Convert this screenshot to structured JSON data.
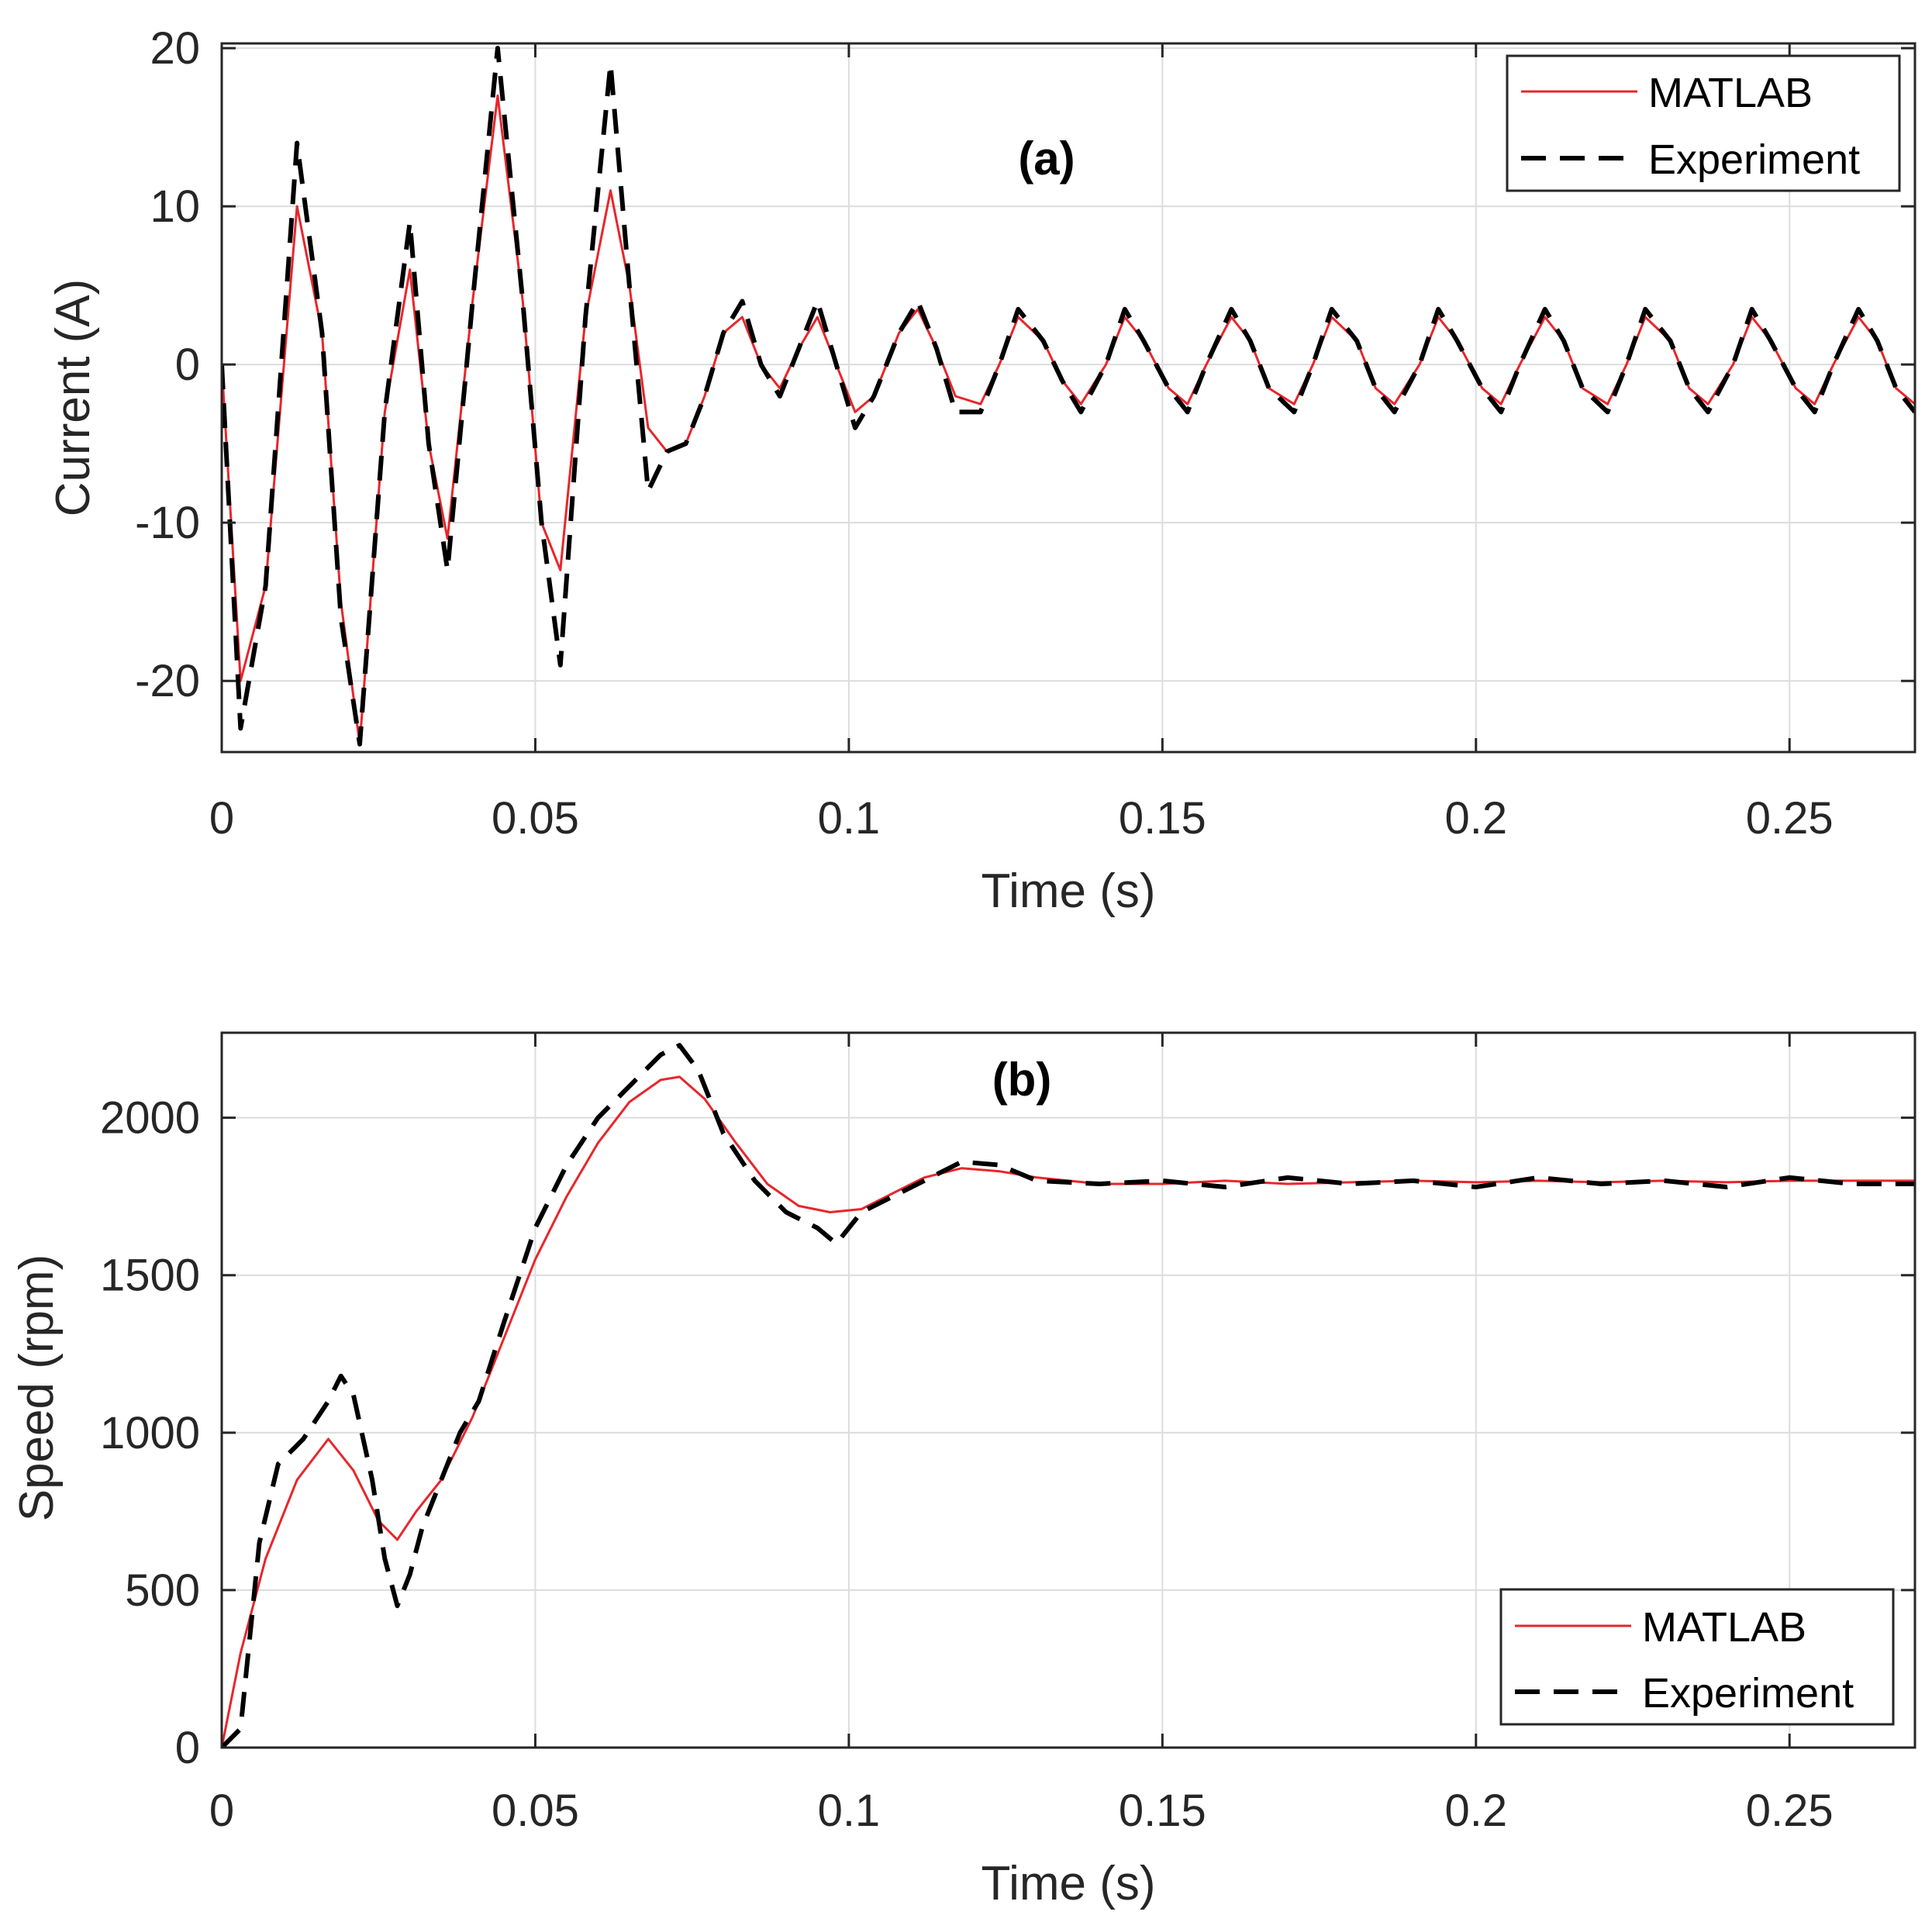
{
  "chart_data": [
    {
      "type": "line",
      "id": "a",
      "title": "(a)",
      "xlabel": "Time (s)",
      "ylabel": "Current (A)",
      "xlim": [
        0,
        0.27
      ],
      "ylim": [
        -24.5,
        20.3
      ],
      "xticks": [
        0,
        0.05,
        0.1,
        0.15,
        0.2,
        0.25
      ],
      "xtick_labels": [
        "0",
        "0.05",
        "0.1",
        "0.15",
        "0.2",
        "0.25"
      ],
      "yticks": [
        -20,
        -10,
        0,
        10,
        20
      ],
      "ytick_labels": [
        "-20",
        "-10",
        "0",
        "10",
        "20"
      ],
      "grid": true,
      "legend_position": "top-right",
      "series": [
        {
          "name": "MATLAB",
          "color": "#e8262b",
          "style": "solid",
          "x": [
            0,
            0.003,
            0.007,
            0.012,
            0.016,
            0.019,
            0.022,
            0.026,
            0.03,
            0.033,
            0.036,
            0.04,
            0.044,
            0.048,
            0.051,
            0.054,
            0.058,
            0.062,
            0.065,
            0.068,
            0.071,
            0.074,
            0.077,
            0.08,
            0.083,
            0.086,
            0.089,
            0.092,
            0.095,
            0.098,
            0.101,
            0.104,
            0.108,
            0.111,
            0.114,
            0.117,
            0.121,
            0.124,
            0.127,
            0.131,
            0.134,
            0.137,
            0.141,
            0.144,
            0.147,
            0.151,
            0.154,
            0.157,
            0.161,
            0.164,
            0.167,
            0.171,
            0.174,
            0.177,
            0.181,
            0.184,
            0.187,
            0.191,
            0.194,
            0.197,
            0.201,
            0.204,
            0.207,
            0.211,
            0.214,
            0.217,
            0.221,
            0.224,
            0.227,
            0.231,
            0.234,
            0.237,
            0.241,
            0.244,
            0.247,
            0.251,
            0.254,
            0.257,
            0.261,
            0.264,
            0.267,
            0.27
          ],
          "y": [
            0,
            -20,
            -14,
            10,
            2,
            -15,
            -24,
            -3,
            6,
            -5,
            -11,
            4,
            17,
            4,
            -10,
            -13,
            3,
            11,
            5,
            -4,
            -5.5,
            -5,
            -2,
            2,
            3,
            0,
            -1.5,
            1,
            3,
            0,
            -3,
            -2,
            2,
            3.5,
            1,
            -2,
            -2.5,
            0,
            3,
            1.5,
            -1,
            -2.5,
            0,
            3,
            1.5,
            -1.5,
            -2.5,
            0,
            3,
            1.5,
            -1.5,
            -2.5,
            0,
            3,
            1.5,
            -1.5,
            -2.5,
            0,
            3,
            1.5,
            -1.5,
            -2.5,
            0,
            3,
            1.5,
            -1.5,
            -2.5,
            0,
            3,
            1.5,
            -1.5,
            -2.5,
            0,
            3,
            1.5,
            -1.5,
            -2.5,
            0,
            3,
            1.5,
            -1.5,
            -2.5
          ]
        },
        {
          "name": "Experiment",
          "color": "#000000",
          "style": "dashed",
          "x": [
            0,
            0.003,
            0.007,
            0.012,
            0.016,
            0.019,
            0.022,
            0.026,
            0.03,
            0.033,
            0.036,
            0.04,
            0.044,
            0.048,
            0.051,
            0.054,
            0.058,
            0.062,
            0.065,
            0.068,
            0.071,
            0.074,
            0.077,
            0.08,
            0.083,
            0.086,
            0.089,
            0.092,
            0.095,
            0.098,
            0.101,
            0.104,
            0.108,
            0.111,
            0.114,
            0.117,
            0.121,
            0.124,
            0.127,
            0.131,
            0.134,
            0.137,
            0.141,
            0.144,
            0.147,
            0.151,
            0.154,
            0.157,
            0.161,
            0.164,
            0.167,
            0.171,
            0.174,
            0.177,
            0.181,
            0.184,
            0.187,
            0.191,
            0.194,
            0.197,
            0.201,
            0.204,
            0.207,
            0.211,
            0.214,
            0.217,
            0.221,
            0.224,
            0.227,
            0.231,
            0.234,
            0.237,
            0.241,
            0.244,
            0.247,
            0.251,
            0.254,
            0.257,
            0.261,
            0.264,
            0.267,
            0.27
          ],
          "y": [
            0,
            -23,
            -14,
            14,
            2,
            -16,
            -24,
            -3,
            9,
            -5,
            -13,
            4,
            20,
            4,
            -10,
            -19,
            3,
            19,
            5,
            -8,
            -5.5,
            -5,
            -2,
            2,
            4,
            0,
            -2,
            1,
            4,
            0,
            -4,
            -2,
            2,
            4,
            1,
            -3,
            -3,
            0,
            3.5,
            1.5,
            -1,
            -3,
            0,
            3.5,
            1.5,
            -1.5,
            -3,
            0,
            3.5,
            1.5,
            -1.5,
            -3,
            0,
            3.5,
            1.5,
            -1.5,
            -3,
            0,
            3.5,
            1.5,
            -1.5,
            -3,
            0,
            3.5,
            1.5,
            -1.5,
            -3,
            0,
            3.5,
            1.5,
            -1.5,
            -3,
            0,
            3.5,
            1.5,
            -1.5,
            -3,
            0,
            3.5,
            1.5,
            -1.5,
            -3
          ]
        }
      ]
    },
    {
      "type": "line",
      "id": "b",
      "title": "(b)",
      "xlabel": "Time (s)",
      "ylabel": "Speed (rpm)",
      "xlim": [
        0,
        0.27
      ],
      "ylim": [
        0,
        2270
      ],
      "xticks": [
        0,
        0.05,
        0.1,
        0.15,
        0.2,
        0.25
      ],
      "xtick_labels": [
        "0",
        "0.05",
        "0.1",
        "0.15",
        "0.2",
        "0.25"
      ],
      "yticks": [
        0,
        500,
        1000,
        1500,
        2000
      ],
      "ytick_labels": [
        "0",
        "500",
        "1000",
        "1500",
        "2000"
      ],
      "grid": true,
      "legend_position": "bottom-right",
      "series": [
        {
          "name": "MATLAB",
          "color": "#e8262b",
          "style": "solid",
          "x": [
            0,
            0.003,
            0.007,
            0.012,
            0.017,
            0.021,
            0.025,
            0.028,
            0.031,
            0.035,
            0.04,
            0.045,
            0.05,
            0.055,
            0.06,
            0.065,
            0.07,
            0.073,
            0.077,
            0.082,
            0.087,
            0.092,
            0.097,
            0.102,
            0.107,
            0.112,
            0.118,
            0.124,
            0.13,
            0.14,
            0.15,
            0.16,
            0.17,
            0.18,
            0.19,
            0.2,
            0.21,
            0.22,
            0.23,
            0.24,
            0.25,
            0.26,
            0.27
          ],
          "y": [
            0,
            300,
            600,
            850,
            980,
            880,
            720,
            660,
            750,
            850,
            1050,
            1300,
            1550,
            1750,
            1920,
            2050,
            2120,
            2130,
            2060,
            1920,
            1790,
            1720,
            1700,
            1710,
            1760,
            1810,
            1840,
            1830,
            1810,
            1790,
            1790,
            1800,
            1790,
            1795,
            1800,
            1795,
            1800,
            1795,
            1800,
            1795,
            1800,
            1800,
            1800
          ]
        },
        {
          "name": "Experiment",
          "color": "#000000",
          "style": "dashed",
          "x": [
            0,
            0.003,
            0.006,
            0.009,
            0.013,
            0.017,
            0.019,
            0.021,
            0.024,
            0.026,
            0.028,
            0.03,
            0.032,
            0.035,
            0.038,
            0.041,
            0.045,
            0.05,
            0.055,
            0.06,
            0.065,
            0.07,
            0.073,
            0.076,
            0.08,
            0.085,
            0.09,
            0.095,
            0.098,
            0.102,
            0.107,
            0.112,
            0.118,
            0.124,
            0.13,
            0.14,
            0.15,
            0.16,
            0.17,
            0.18,
            0.19,
            0.2,
            0.21,
            0.22,
            0.23,
            0.24,
            0.25,
            0.26,
            0.27
          ],
          "y": [
            0,
            60,
            650,
            900,
            980,
            1100,
            1180,
            1120,
            850,
            600,
            450,
            550,
            700,
            850,
            1000,
            1100,
            1350,
            1650,
            1850,
            2000,
            2100,
            2200,
            2230,
            2150,
            1950,
            1800,
            1700,
            1650,
            1600,
            1700,
            1750,
            1800,
            1860,
            1850,
            1800,
            1790,
            1800,
            1780,
            1810,
            1790,
            1800,
            1780,
            1810,
            1790,
            1800,
            1780,
            1810,
            1790,
            1790
          ]
        }
      ]
    }
  ]
}
